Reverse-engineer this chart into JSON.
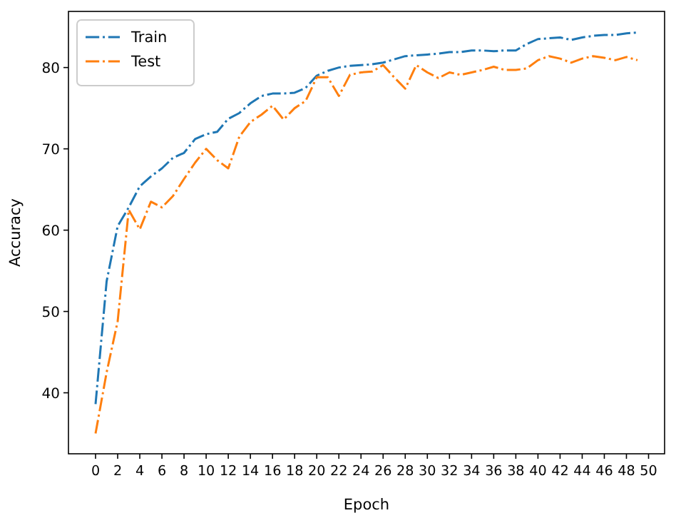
{
  "chart_data": {
    "type": "line",
    "xlabel": "Epoch",
    "ylabel": "Accuracy",
    "x": [
      0,
      1,
      2,
      3,
      4,
      5,
      6,
      7,
      8,
      9,
      10,
      11,
      12,
      13,
      14,
      15,
      16,
      17,
      18,
      19,
      20,
      21,
      22,
      23,
      24,
      25,
      26,
      27,
      28,
      29,
      30,
      31,
      32,
      33,
      34,
      35,
      36,
      37,
      38,
      39,
      40,
      41,
      42,
      43,
      44,
      45,
      46,
      47,
      48,
      49
    ],
    "series": [
      {
        "name": "Train",
        "color": "#1f77b4",
        "values": [
          38.6,
          53.7,
          60.5,
          62.8,
          65.4,
          66.6,
          67.6,
          68.9,
          69.5,
          71.2,
          71.8,
          72.1,
          73.7,
          74.4,
          75.6,
          76.5,
          76.8,
          76.8,
          76.9,
          77.5,
          79.0,
          79.6,
          80.0,
          80.2,
          80.3,
          80.4,
          80.6,
          81.0,
          81.4,
          81.5,
          81.6,
          81.7,
          81.9,
          81.9,
          82.1,
          82.1,
          82.0,
          82.1,
          82.1,
          82.9,
          83.5,
          83.6,
          83.7,
          83.4,
          83.7,
          83.9,
          84.0,
          84.0,
          84.2,
          84.3
        ]
      },
      {
        "name": "Test",
        "color": "#ff7f0e",
        "values": [
          35.0,
          42.5,
          48.8,
          62.5,
          60.1,
          63.5,
          62.8,
          64.2,
          66.3,
          68.3,
          70.0,
          68.6,
          67.6,
          71.5,
          73.3,
          74.2,
          75.3,
          73.6,
          75.0,
          75.9,
          78.8,
          78.8,
          76.5,
          79.1,
          79.4,
          79.5,
          80.3,
          78.8,
          77.4,
          80.3,
          79.4,
          78.7,
          79.4,
          79.1,
          79.4,
          79.7,
          80.1,
          79.7,
          79.7,
          79.9,
          80.9,
          81.4,
          81.1,
          80.6,
          81.1,
          81.4,
          81.2,
          80.9,
          81.3,
          80.9
        ]
      }
    ],
    "xlim": [
      -2.45,
      51.45
    ],
    "ylim": [
      32.5,
      86.9
    ],
    "xticks": [
      0,
      2,
      4,
      6,
      8,
      10,
      12,
      14,
      16,
      18,
      20,
      22,
      24,
      26,
      28,
      30,
      32,
      34,
      36,
      38,
      40,
      42,
      44,
      46,
      48,
      50
    ],
    "yticks": [
      40,
      50,
      60,
      70,
      80
    ],
    "grid": false,
    "legend": "top left",
    "line_style": "dashdot",
    "marker": "none"
  }
}
